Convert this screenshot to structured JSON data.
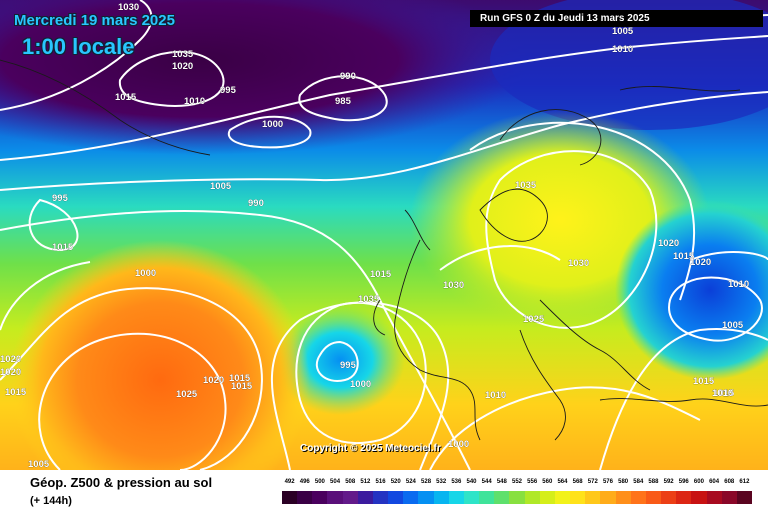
{
  "map": {
    "date_label": "Mercredi 19 mars 2025",
    "time_label": "1:00 locale",
    "run_label": "Run GFS 0 Z du Jeudi 13 mars 2025",
    "copyright": "Copyright © 2025 Meteociel.fr",
    "isobar_values": [
      "1030",
      "1035",
      "1020",
      "1015",
      "1010",
      "995",
      "985",
      "990",
      "1000",
      "1005",
      "990",
      "995",
      "1015",
      "1000",
      "1005",
      "1010",
      "1015",
      "1035",
      "1030",
      "1035",
      "1030",
      "1025",
      "1020",
      "1015",
      "1020",
      "1010",
      "1005",
      "995",
      "1000",
      "1025",
      "1020",
      "1015",
      "1015",
      "1020",
      "1020",
      "1015",
      "1010",
      "1015",
      "1015",
      "1010",
      "1000",
      "1005",
      "1000"
    ]
  },
  "legend": {
    "title": "Géop. Z500 & pression au sol",
    "subtitle": "(+ 144h)",
    "scale_values": [
      "492",
      "496",
      "500",
      "504",
      "508",
      "512",
      "516",
      "520",
      "524",
      "528",
      "532",
      "536",
      "540",
      "544",
      "548",
      "552",
      "556",
      "560",
      "564",
      "568",
      "572",
      "576",
      "580",
      "584",
      "588",
      "592",
      "596",
      "600",
      "604",
      "608",
      "612"
    ],
    "scale_colors": [
      "#2b0025",
      "#3a0045",
      "#4a005e",
      "#5a0f7a",
      "#631a8a",
      "#3b1b9e",
      "#2433c2",
      "#1248e0",
      "#0a6bf0",
      "#0590f2",
      "#07b5f0",
      "#16d6e8",
      "#2ee4c8",
      "#3fe39a",
      "#5ee06c",
      "#88e040",
      "#b0e828",
      "#d5ee1a",
      "#f2f21a",
      "#ffe21a",
      "#ffc81a",
      "#ffac1a",
      "#ff8f1a",
      "#ff731a",
      "#f95a18",
      "#ec3f16",
      "#dc2614",
      "#c81212",
      "#a80a20",
      "#8a0728",
      "#5a0420"
    ]
  }
}
